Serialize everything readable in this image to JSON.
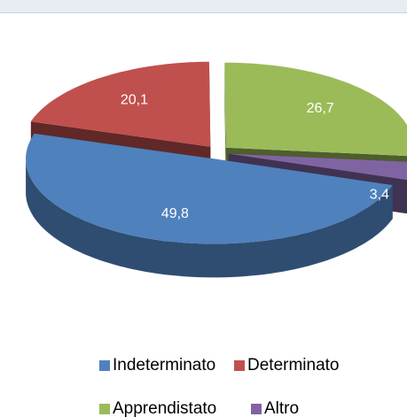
{
  "chart_data": {
    "type": "pie3d",
    "categories": [
      "Indeterminato",
      "Determinato",
      "Apprendistato",
      "Altro"
    ],
    "values": [
      49.8,
      20.1,
      26.7,
      3.4
    ],
    "value_labels": [
      "49,8",
      "20,1",
      "26,7",
      "3,4"
    ],
    "colors": [
      "#4f81bd",
      "#c0504d",
      "#9bbb59",
      "#8064a2"
    ],
    "legend": "bottom"
  }
}
